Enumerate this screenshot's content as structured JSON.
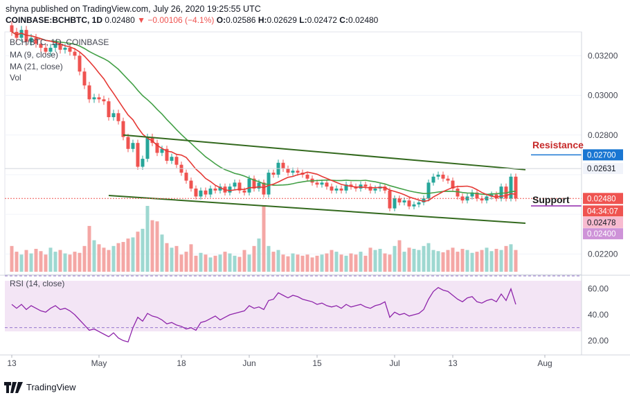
{
  "header": {
    "publish_line": "shyna published on TradingView.com, July 26, 2020 19:25:55 UTC",
    "symbol": "COINBASE:BCHBTC, 1D",
    "last": "0.02480",
    "change": "−0.00106 (−4.1%)",
    "o_label": "O:",
    "o_val": "0.02586",
    "h_label": "H:",
    "h_val": "0.02629",
    "l_label": "L:",
    "l_val": "0.02472",
    "c_label": "C:",
    "c_val": "0.02480"
  },
  "legend": {
    "title": "BCH/BTC, 1D, COINBASE",
    "ma9": "MA (9, close)",
    "ma21": "MA (21, close)",
    "vol": "Vol"
  },
  "annotations": {
    "resistance": "Resistance",
    "support": "Support"
  },
  "price_axis": {
    "ticks": [
      "0.03200",
      "0.03000",
      "0.02800",
      "0.02200"
    ],
    "tag_resistance": "0.02700",
    "tag_high": "0.02631",
    "tag_last": "0.02480",
    "tag_countdown": "04:34:07",
    "tag_478": "0.02478",
    "tag_400": "0.02400"
  },
  "rsi": {
    "label": "RSI (14, close)",
    "ticks": [
      "60.00",
      "40.00",
      "20.00"
    ]
  },
  "time_axis": {
    "labels": [
      "13",
      "May",
      "18",
      "Jun",
      "15",
      "Jul",
      "13",
      "Aug"
    ]
  },
  "branding": {
    "logo_text": "TradingView"
  },
  "colors": {
    "up": "#26a69a",
    "down": "#ef5350",
    "ma9": "#e53935",
    "ma21": "#43a047",
    "trend": "#33691e",
    "rsi_line": "#8e24aa",
    "rsi_band": "#f3e5f5",
    "resistance_tag": "#1976d2",
    "support_tag": "#8e24aa"
  },
  "chart_data": {
    "type": "candlestick",
    "symbol": "BCHBTC",
    "timeframe": "1D",
    "dates": [
      "2020-04-13",
      "2020-04-14",
      "2020-04-15",
      "2020-04-16",
      "2020-04-17",
      "2020-04-18",
      "2020-04-19",
      "2020-04-20",
      "2020-04-21",
      "2020-04-22",
      "2020-04-23",
      "2020-04-24",
      "2020-04-25",
      "2020-04-26",
      "2020-04-27",
      "2020-04-28",
      "2020-04-29",
      "2020-04-30",
      "2020-05-01",
      "2020-05-02",
      "2020-05-03",
      "2020-05-04",
      "2020-05-05",
      "2020-05-06",
      "2020-05-07",
      "2020-05-08",
      "2020-05-09",
      "2020-05-10",
      "2020-05-11",
      "2020-05-12",
      "2020-05-13",
      "2020-05-14",
      "2020-05-15",
      "2020-05-16",
      "2020-05-17",
      "2020-05-18",
      "2020-05-19",
      "2020-05-20",
      "2020-05-21",
      "2020-05-22",
      "2020-05-23",
      "2020-05-24",
      "2020-05-25",
      "2020-05-26",
      "2020-05-27",
      "2020-05-28",
      "2020-05-29",
      "2020-05-30",
      "2020-05-31",
      "2020-06-01",
      "2020-06-02",
      "2020-06-03",
      "2020-06-04",
      "2020-06-05",
      "2020-06-06",
      "2020-06-07",
      "2020-06-08",
      "2020-06-09",
      "2020-06-10",
      "2020-06-11",
      "2020-06-12",
      "2020-06-13",
      "2020-06-14",
      "2020-06-15",
      "2020-06-16",
      "2020-06-17",
      "2020-06-18",
      "2020-06-19",
      "2020-06-20",
      "2020-06-21",
      "2020-06-22",
      "2020-06-23",
      "2020-06-24",
      "2020-06-25",
      "2020-06-26",
      "2020-06-27",
      "2020-06-28",
      "2020-06-29",
      "2020-06-30",
      "2020-07-01",
      "2020-07-02",
      "2020-07-03",
      "2020-07-04",
      "2020-07-05",
      "2020-07-06",
      "2020-07-07",
      "2020-07-08",
      "2020-07-09",
      "2020-07-10",
      "2020-07-11",
      "2020-07-12",
      "2020-07-13",
      "2020-07-14",
      "2020-07-15",
      "2020-07-16",
      "2020-07-17",
      "2020-07-18",
      "2020-07-19",
      "2020-07-20",
      "2020-07-21",
      "2020-07-22",
      "2020-07-23",
      "2020-07-24",
      "2020-07-25",
      "2020-07-26"
    ],
    "close": [
      0.0332,
      0.0329,
      0.0333,
      0.0327,
      0.0329,
      0.0326,
      0.0324,
      0.0322,
      0.0324,
      0.0326,
      0.0323,
      0.0324,
      0.0322,
      0.032,
      0.0312,
      0.0305,
      0.0298,
      0.0299,
      0.0298,
      0.0297,
      0.0289,
      0.0291,
      0.0287,
      0.0279,
      0.0273,
      0.0276,
      0.0264,
      0.0268,
      0.0279,
      0.0276,
      0.0271,
      0.0273,
      0.0267,
      0.0269,
      0.0265,
      0.0261,
      0.0257,
      0.0253,
      0.0249,
      0.0252,
      0.025,
      0.0253,
      0.0252,
      0.0254,
      0.0251,
      0.0254,
      0.0256,
      0.0252,
      0.0251,
      0.0258,
      0.0253,
      0.0256,
      0.025,
      0.0261,
      0.026,
      0.0266,
      0.0263,
      0.0261,
      0.0262,
      0.0261,
      0.026,
      0.0258,
      0.0256,
      0.0255,
      0.0256,
      0.0254,
      0.0252,
      0.0253,
      0.0252,
      0.0255,
      0.0254,
      0.0253,
      0.0255,
      0.0254,
      0.0252,
      0.0253,
      0.0254,
      0.0252,
      0.0243,
      0.0248,
      0.0246,
      0.0247,
      0.0244,
      0.0245,
      0.0246,
      0.0248,
      0.0256,
      0.0259,
      0.026,
      0.0258,
      0.0257,
      0.0253,
      0.0249,
      0.0247,
      0.0249,
      0.0251,
      0.0248,
      0.0247,
      0.0249,
      0.025,
      0.0248,
      0.0254,
      0.0248,
      0.0259,
      0.0248
    ],
    "volume_relative": [
      0.45,
      0.35,
      0.3,
      0.38,
      0.32,
      0.4,
      0.36,
      0.3,
      0.42,
      0.35,
      0.38,
      0.32,
      0.3,
      0.35,
      0.33,
      0.45,
      0.8,
      0.55,
      0.48,
      0.42,
      0.38,
      0.45,
      0.5,
      0.52,
      0.58,
      0.6,
      0.7,
      0.75,
      1.15,
      0.9,
      0.88,
      0.65,
      0.5,
      0.42,
      0.45,
      0.3,
      0.35,
      0.48,
      0.28,
      0.33,
      0.3,
      0.25,
      0.28,
      0.3,
      0.35,
      0.32,
      0.28,
      0.26,
      0.38,
      0.3,
      0.45,
      0.58,
      1.15,
      0.45,
      0.35,
      0.38,
      0.3,
      0.27,
      0.32,
      0.3,
      0.28,
      0.3,
      0.25,
      0.28,
      0.3,
      0.32,
      0.38,
      0.35,
      0.3,
      0.28,
      0.32,
      0.3,
      0.35,
      0.28,
      0.42,
      0.38,
      0.4,
      0.32,
      0.3,
      0.45,
      0.55,
      0.35,
      0.42,
      0.4,
      0.38,
      0.45,
      0.5,
      0.38,
      0.36,
      0.34,
      0.38,
      0.42,
      0.35,
      0.4,
      0.38,
      0.33,
      0.35,
      0.38,
      0.42,
      0.36,
      0.4,
      0.38,
      0.45,
      0.48,
      0.38
    ],
    "rsi": [
      48,
      45,
      48,
      44,
      47,
      45,
      43,
      42,
      45,
      47,
      44,
      45,
      43,
      40,
      36,
      32,
      28,
      29,
      27,
      25,
      23,
      26,
      22,
      20,
      19,
      30,
      38,
      35,
      41,
      39,
      38,
      36,
      33,
      34,
      32,
      31,
      29,
      30,
      28,
      34,
      35,
      37,
      39,
      36,
      38,
      40,
      41,
      42,
      43,
      47,
      45,
      46,
      44,
      51,
      52,
      57,
      55,
      53,
      55,
      54,
      52,
      51,
      50,
      48,
      49,
      47,
      46,
      47,
      45,
      48,
      46,
      47,
      48,
      46,
      45,
      47,
      48,
      50,
      38,
      42,
      40,
      41,
      39,
      40,
      41,
      44,
      52,
      58,
      61,
      59,
      58,
      55,
      52,
      50,
      53,
      54,
      50,
      49,
      51,
      52,
      50,
      56,
      51,
      60,
      48
    ],
    "ma_periods": [
      9,
      21
    ],
    "rsi_period": 14,
    "trendlines": {
      "upper": [
        [
          "2020-05-06",
          0.028
        ],
        [
          "2020-07-26",
          0.02625
        ]
      ],
      "lower": [
        [
          "2020-05-03",
          0.02495
        ],
        [
          "2020-07-26",
          0.02355
        ]
      ]
    },
    "levels": {
      "resistance": 0.027,
      "support": 0.024
    },
    "price_axis_range": [
      0.021,
      0.0332
    ],
    "rsi_range": [
      10,
      70
    ],
    "rsi_bands": [
      30,
      70
    ]
  }
}
